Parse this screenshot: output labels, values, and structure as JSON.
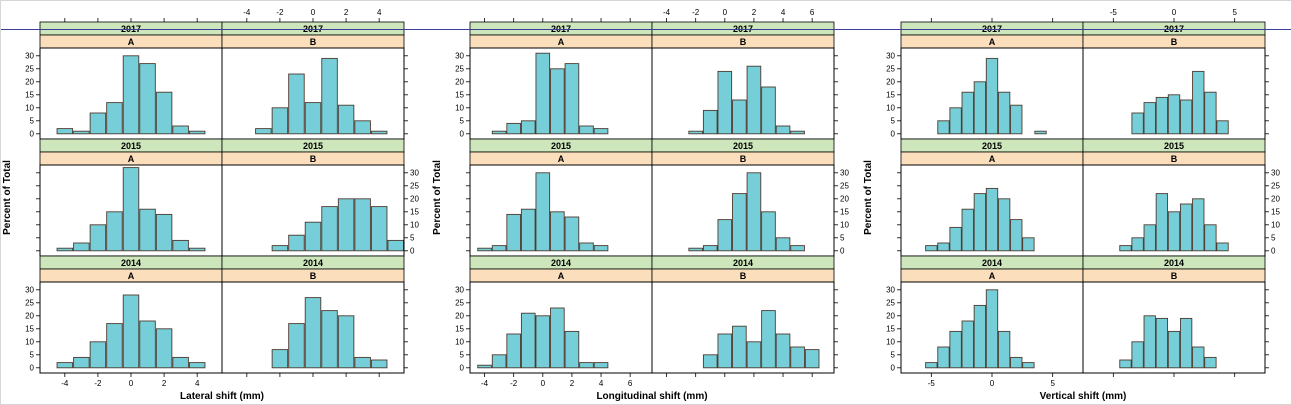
{
  "style": {
    "background": "#ffffff",
    "bar_fill": "#76cfd8",
    "bar_stroke": "#4f3a30",
    "strip_year_fill": "#cde6bb",
    "strip_group_fill": "#fbdfbd",
    "axis_color": "#000000",
    "rule_color": "#3a3e96",
    "border_color": "#d6d6d6"
  },
  "chart_data": [
    {
      "type": "bar",
      "subtype": "trellis-histogram-grid",
      "xlabel": "Lateral shift (mm)",
      "ylabel": "Percent of Total",
      "rows": [
        "2017",
        "2015",
        "2014"
      ],
      "cols": [
        "A",
        "B"
      ],
      "xlim": [
        -5.5,
        5.5
      ],
      "xticks": [
        -4,
        -2,
        0,
        2,
        4
      ],
      "ylim": [
        -2,
        33
      ],
      "yticks": [
        0,
        5,
        10,
        15,
        20,
        25,
        30
      ],
      "panels": [
        {
          "row": "2017",
          "col": "A",
          "bin_centers": [
            -4,
            -3,
            -2,
            -1,
            0,
            1,
            2,
            3,
            4
          ],
          "percent": [
            2,
            1,
            8,
            12,
            30,
            27,
            16,
            3,
            1
          ]
        },
        {
          "row": "2017",
          "col": "B",
          "bin_centers": [
            -3,
            -2,
            -1,
            0,
            1,
            2,
            3,
            4
          ],
          "percent": [
            2,
            10,
            23,
            12,
            29,
            11,
            5,
            1
          ]
        },
        {
          "row": "2015",
          "col": "A",
          "bin_centers": [
            -4,
            -3,
            -2,
            -1,
            0,
            1,
            2,
            3,
            4
          ],
          "percent": [
            1,
            3,
            10,
            15,
            32,
            16,
            14,
            4,
            1
          ]
        },
        {
          "row": "2015",
          "col": "B",
          "bin_centers": [
            -2,
            -1,
            0,
            1,
            2,
            3,
            4,
            5
          ],
          "percent": [
            2,
            6,
            11,
            17,
            20,
            20,
            17,
            4
          ]
        },
        {
          "row": "2014",
          "col": "A",
          "bin_centers": [
            -4,
            -3,
            -2,
            -1,
            0,
            1,
            2,
            3,
            4
          ],
          "percent": [
            2,
            4,
            10,
            17,
            28,
            18,
            15,
            4,
            2
          ]
        },
        {
          "row": "2014",
          "col": "B",
          "bin_centers": [
            -2,
            -1,
            0,
            1,
            2,
            3,
            4
          ],
          "percent": [
            7,
            17,
            27,
            22,
            20,
            4,
            3
          ]
        }
      ]
    },
    {
      "type": "bar",
      "subtype": "trellis-histogram-grid",
      "xlabel": "Longitudinal shift (mm)",
      "ylabel": "Percent of Total",
      "rows": [
        "2017",
        "2015",
        "2014"
      ],
      "cols": [
        "A",
        "B"
      ],
      "xlim": [
        -5,
        7.5
      ],
      "xticks": [
        -4,
        -2,
        0,
        2,
        4,
        6
      ],
      "ylim": [
        -2,
        33
      ],
      "yticks": [
        0,
        5,
        10,
        15,
        20,
        25,
        30
      ],
      "panels": [
        {
          "row": "2017",
          "col": "A",
          "bin_centers": [
            -3,
            -2,
            -1,
            0,
            1,
            2,
            3,
            4
          ],
          "percent": [
            1,
            4,
            5,
            31,
            25,
            27,
            3,
            2
          ]
        },
        {
          "row": "2017",
          "col": "B",
          "bin_centers": [
            -2,
            -1,
            0,
            1,
            2,
            3,
            4,
            5
          ],
          "percent": [
            1,
            9,
            24,
            13,
            26,
            18,
            3,
            1
          ]
        },
        {
          "row": "2015",
          "col": "A",
          "bin_centers": [
            -4,
            -3,
            -2,
            -1,
            0,
            1,
            2,
            3,
            4
          ],
          "percent": [
            1,
            2,
            14,
            16,
            30,
            15,
            13,
            3,
            2
          ]
        },
        {
          "row": "2015",
          "col": "B",
          "bin_centers": [
            -2,
            -1,
            0,
            1,
            2,
            3,
            4,
            5
          ],
          "percent": [
            1,
            2,
            12,
            22,
            30,
            15,
            5,
            2
          ]
        },
        {
          "row": "2014",
          "col": "A",
          "bin_centers": [
            -4,
            -3,
            -2,
            -1,
            0,
            1,
            2,
            3,
            4
          ],
          "percent": [
            1,
            5,
            13,
            21,
            20,
            23,
            14,
            2,
            2
          ]
        },
        {
          "row": "2014",
          "col": "B",
          "bin_centers": [
            -1,
            0,
            1,
            2,
            3,
            4,
            5,
            6
          ],
          "percent": [
            5,
            13,
            16,
            10,
            22,
            13,
            8,
            7
          ]
        }
      ]
    },
    {
      "type": "bar",
      "subtype": "trellis-histogram-grid",
      "xlabel": "Vertical shift (mm)",
      "ylabel": "Percent of Total",
      "rows": [
        "2017",
        "2015",
        "2014"
      ],
      "cols": [
        "A",
        "B"
      ],
      "xlim": [
        -7.5,
        7.5
      ],
      "xticks": [
        -5,
        0,
        5
      ],
      "ylim": [
        -2,
        33
      ],
      "yticks": [
        0,
        5,
        10,
        15,
        20,
        25,
        30
      ],
      "panels": [
        {
          "row": "2017",
          "col": "A",
          "bin_centers": [
            -4,
            -3,
            -2,
            -1,
            0,
            1,
            2,
            3,
            4
          ],
          "percent": [
            5,
            10,
            16,
            20,
            29,
            16,
            11,
            0,
            1
          ]
        },
        {
          "row": "2017",
          "col": "B",
          "bin_centers": [
            -3,
            -2,
            -1,
            0,
            1,
            2,
            3,
            4
          ],
          "percent": [
            8,
            12,
            14,
            15,
            13,
            24,
            16,
            5
          ]
        },
        {
          "row": "2015",
          "col": "A",
          "bin_centers": [
            -5,
            -4,
            -3,
            -2,
            -1,
            0,
            1,
            2,
            3
          ],
          "percent": [
            2,
            3,
            9,
            16,
            22,
            24,
            20,
            12,
            5
          ]
        },
        {
          "row": "2015",
          "col": "B",
          "bin_centers": [
            -4,
            -3,
            -2,
            -1,
            0,
            1,
            2,
            3,
            4
          ],
          "percent": [
            2,
            5,
            10,
            22,
            15,
            18,
            20,
            10,
            3
          ]
        },
        {
          "row": "2014",
          "col": "A",
          "bin_centers": [
            -5,
            -4,
            -3,
            -2,
            -1,
            0,
            1,
            2,
            3
          ],
          "percent": [
            2,
            8,
            14,
            18,
            24,
            30,
            14,
            4,
            2
          ]
        },
        {
          "row": "2014",
          "col": "B",
          "bin_centers": [
            -4,
            -3,
            -2,
            -1,
            0,
            1,
            2,
            3
          ],
          "percent": [
            3,
            10,
            20,
            19,
            14,
            19,
            8,
            4
          ]
        }
      ]
    }
  ]
}
